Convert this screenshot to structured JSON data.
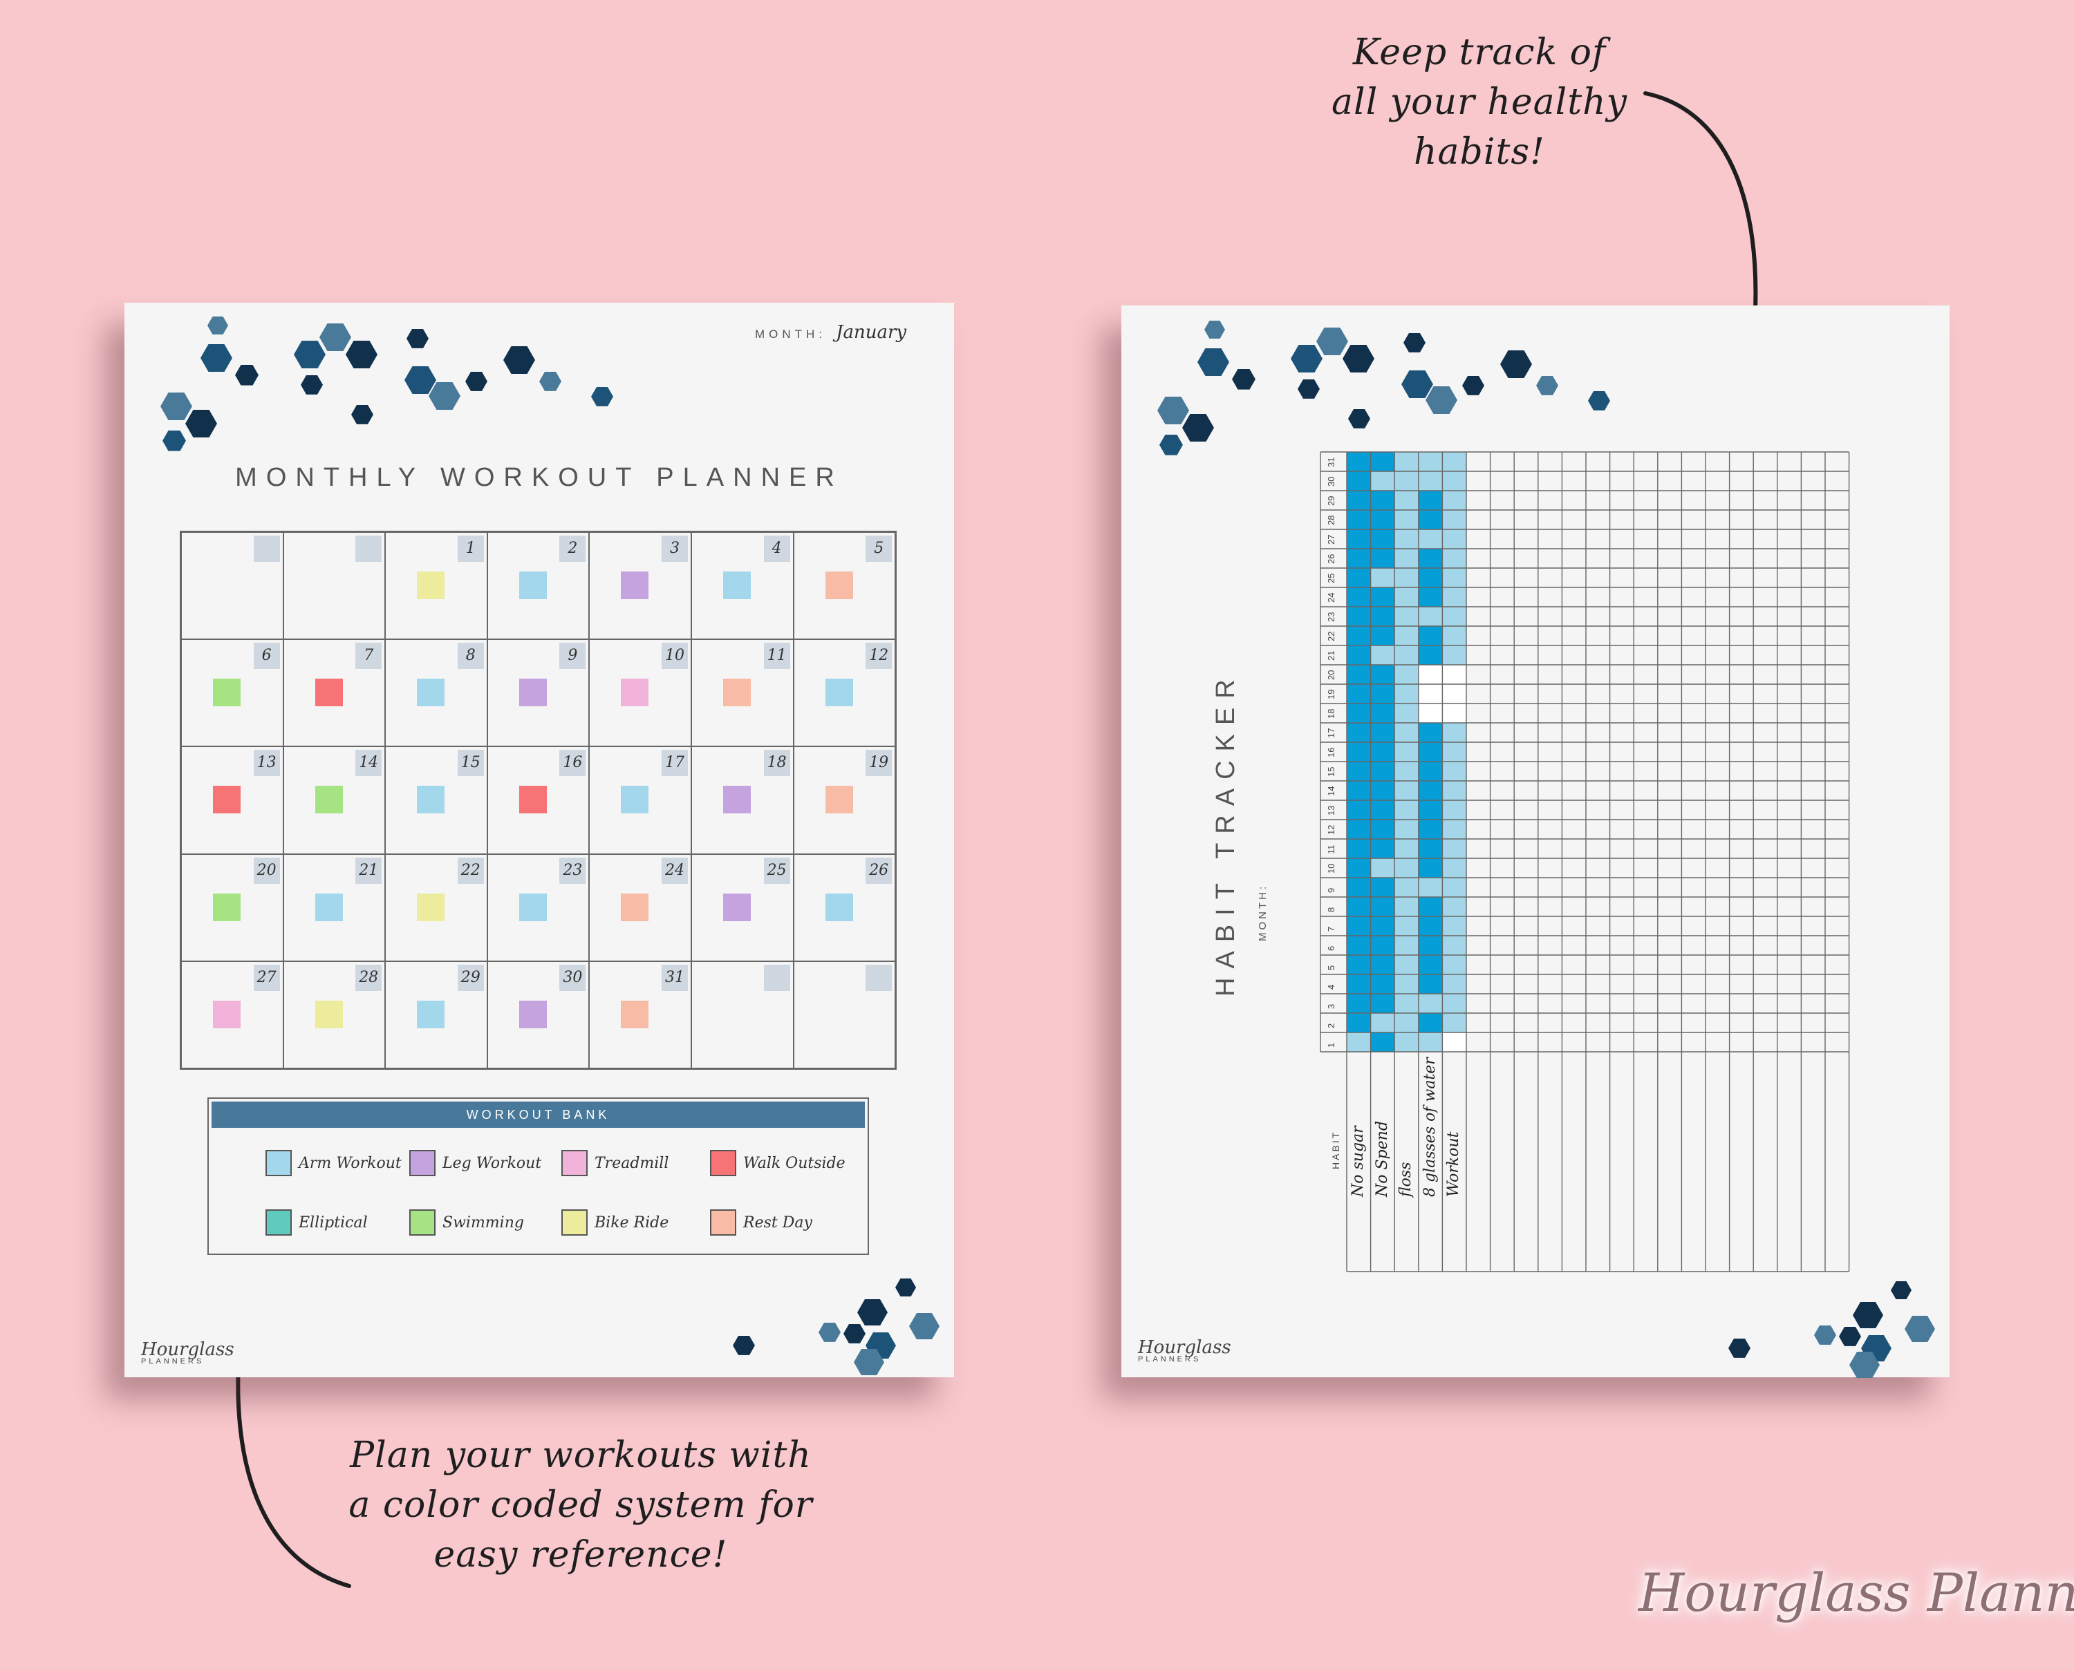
{
  "annotations": {
    "top_right": [
      "Keep track of",
      "all your healthy",
      "habits!"
    ],
    "bottom_left": [
      "Plan your workouts with",
      "a color coded system for",
      "easy reference!"
    ]
  },
  "workout_planner": {
    "month_label": "MONTH:",
    "month_value": "January",
    "title": "MONTHLY WORKOUT PLANNER",
    "days": [
      {
        "day": "",
        "workout": null
      },
      {
        "day": "",
        "workout": null
      },
      {
        "day": "1",
        "workout": "Bike Ride"
      },
      {
        "day": "2",
        "workout": "Arm Workout"
      },
      {
        "day": "3",
        "workout": "Leg Workout"
      },
      {
        "day": "4",
        "workout": "Arm Workout"
      },
      {
        "day": "5",
        "workout": "Rest Day"
      },
      {
        "day": "6",
        "workout": "Swimming"
      },
      {
        "day": "7",
        "workout": "Walk Outside"
      },
      {
        "day": "8",
        "workout": "Arm Workout"
      },
      {
        "day": "9",
        "workout": "Leg Workout"
      },
      {
        "day": "10",
        "workout": "Treadmill"
      },
      {
        "day": "11",
        "workout": "Rest Day"
      },
      {
        "day": "12",
        "workout": "Arm Workout"
      },
      {
        "day": "13",
        "workout": "Walk Outside"
      },
      {
        "day": "14",
        "workout": "Swimming"
      },
      {
        "day": "15",
        "workout": "Arm Workout"
      },
      {
        "day": "16",
        "workout": "Walk Outside"
      },
      {
        "day": "17",
        "workout": "Arm Workout"
      },
      {
        "day": "18",
        "workout": "Leg Workout"
      },
      {
        "day": "19",
        "workout": "Rest Day"
      },
      {
        "day": "20",
        "workout": "Swimming"
      },
      {
        "day": "21",
        "workout": "Arm Workout"
      },
      {
        "day": "22",
        "workout": "Bike Ride"
      },
      {
        "day": "23",
        "workout": "Arm Workout"
      },
      {
        "day": "24",
        "workout": "Rest Day"
      },
      {
        "day": "25",
        "workout": "Leg Workout"
      },
      {
        "day": "26",
        "workout": "Arm Workout"
      },
      {
        "day": "27",
        "workout": "Treadmill"
      },
      {
        "day": "28",
        "workout": "Bike Ride"
      },
      {
        "day": "29",
        "workout": "Arm Workout"
      },
      {
        "day": "30",
        "workout": "Leg Workout"
      },
      {
        "day": "31",
        "workout": "Rest Day"
      },
      {
        "day": "",
        "workout": null
      },
      {
        "day": "",
        "workout": null
      }
    ],
    "workout_bank": {
      "title": "WORKOUT BANK",
      "items": [
        {
          "label": "Arm Workout",
          "color": "#a3d8ec"
        },
        {
          "label": "Leg Workout",
          "color": "#c4a3de"
        },
        {
          "label": "Treadmill",
          "color": "#f2b3da"
        },
        {
          "label": "Walk Outside",
          "color": "#f67475"
        },
        {
          "label": "Elliptical",
          "color": "#5fcbbf"
        },
        {
          "label": "Swimming",
          "color": "#a6e483"
        },
        {
          "label": "Bike Ride",
          "color": "#ecec9c"
        },
        {
          "label": "Rest Day",
          "color": "#f8bca6"
        }
      ]
    },
    "logo": "Hourglass",
    "logo_sub": "PLANNERS"
  },
  "habit_tracker": {
    "title": "HABIT TRACKER",
    "month_label": "MONTH:",
    "habit_header": "HABIT",
    "habits": [
      "No sugar",
      "No Spend",
      "floss",
      "8 glasses of water",
      "Workout"
    ],
    "day_numbers": [
      "1",
      "2",
      "3",
      "4",
      "5",
      "6",
      "7",
      "8",
      "9",
      "10",
      "11",
      "12",
      "13",
      "14",
      "15",
      "16",
      "17",
      "18",
      "19",
      "20",
      "21",
      "22",
      "23",
      "24",
      "25",
      "26",
      "27",
      "28",
      "29",
      "30",
      "31"
    ],
    "tracking": [
      [
        0,
        1,
        1,
        1,
        1,
        1,
        1,
        1,
        1,
        1,
        1,
        1,
        1,
        1,
        1,
        1,
        1,
        1,
        1,
        1,
        1,
        1,
        1,
        1,
        1,
        1,
        1,
        1,
        1,
        1,
        1
      ],
      [
        1,
        0,
        1,
        1,
        1,
        1,
        1,
        1,
        1,
        0,
        1,
        1,
        1,
        1,
        1,
        1,
        1,
        1,
        1,
        1,
        0,
        1,
        1,
        1,
        0,
        1,
        1,
        1,
        1,
        0,
        1
      ],
      [
        0,
        0,
        0,
        0,
        0,
        0,
        0,
        0,
        0,
        0,
        0,
        0,
        0,
        0,
        0,
        0,
        0,
        0,
        0,
        0,
        0,
        0,
        0,
        0,
        0,
        0,
        0,
        0,
        0,
        0,
        0
      ],
      [
        0,
        1,
        0,
        1,
        1,
        1,
        1,
        1,
        0,
        1,
        1,
        1,
        1,
        1,
        1,
        1,
        1,
        0,
        0,
        0,
        1,
        1,
        0,
        1,
        1,
        1,
        0,
        1,
        1,
        0,
        0
      ],
      [
        0,
        0,
        0,
        0,
        0,
        0,
        0,
        0,
        0,
        0,
        0,
        0,
        0,
        0,
        0,
        0,
        0,
        0,
        0,
        0,
        0,
        0,
        0,
        0,
        0,
        0,
        0,
        0,
        0,
        0,
        0
      ]
    ],
    "colors": {
      "done": "#069ed6",
      "empty": "#a3d6e8",
      "blank": "#ffffff"
    },
    "logo": "Hourglass",
    "logo_sub": "PLANNERS"
  },
  "watermark": "Hourglass Planners",
  "palette": {
    "hex_dark": "#11304b",
    "hex_mid": "#1d5379",
    "hex_light": "#4a7a99"
  }
}
